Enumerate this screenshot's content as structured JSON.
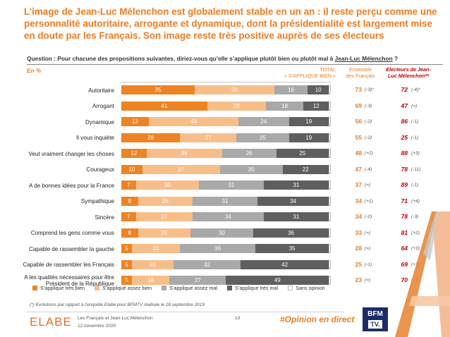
{
  "title": {
    "line1": "L’image de Jean-Luc Mélenchon est globalement stable en un an : il reste perçu comme une",
    "line2": "personnalité autoritaire, arrogante et dynamique, dont la présidentialité est largement mise",
    "line3": "en doute par les Français. Son image reste très positive auprès de ses électeurs"
  },
  "question": {
    "prefix": "Question : Pour chacune des propositions suivantes, diriez-vous qu’elle s’applique plutôt bien ou plutôt mal à",
    "subject": "Jean-Luc Mélenchon",
    "suffix": " ?"
  },
  "unit_label": "En  %",
  "columns": {
    "total_line1": "TOTAL",
    "total_line2": "« S’APPLIQUE BIEN »",
    "ensemble_line1": "Ensemble",
    "ensemble_line2": "des Français",
    "electeurs_line1": "Electeurs de Jean-",
    "electeurs_line2": "Luc Mélenchon**"
  },
  "colors": {
    "tres_bien": "#ee8324",
    "assez_bien": "#f8be8a",
    "assez_mal": "#a9a9a9",
    "tres_mal": "#5f5f5f",
    "sans_opinion": "#ffffff",
    "accent": "#ec7d23",
    "electeurs": "#c00000"
  },
  "chart_data": {
    "type": "bar",
    "orientation": "horizontal-stacked-100",
    "unit": "%",
    "categories": [
      "Autoritaire",
      "Arrogant",
      "Dynamique",
      "Il vous inquiète",
      "Veut vraiment changer les choses",
      "Courageux",
      "A de bonnes idées pour la France",
      "Sympathique",
      "Sincère",
      "Comprend les gens comme vous",
      "Capable de rassembler la gauche",
      "Capable de rassembler les Français",
      "A les qualités nécessaires pour être Président de la République"
    ],
    "series": [
      {
        "name": "S’applique très bien",
        "values": [
          35,
          41,
          13,
          28,
          12,
          10,
          7,
          8,
          7,
          8,
          5,
          5,
          5
        ]
      },
      {
        "name": "S’applique assez bien",
        "values": [
          38,
          28,
          43,
          27,
          36,
          37,
          30,
          26,
          27,
          25,
          23,
          20,
          18
        ]
      },
      {
        "name": "S’applique assez mal",
        "values": [
          16,
          18,
          24,
          25,
          26,
          30,
          31,
          31,
          34,
          30,
          36,
          32,
          27
        ]
      },
      {
        "name": "S’applique très mal",
        "values": [
          10,
          12,
          19,
          19,
          25,
          22,
          31,
          34,
          31,
          36,
          35,
          42,
          49
        ]
      },
      {
        "name": "Sans opinion",
        "values": [
          1,
          1,
          1,
          1,
          1,
          1,
          1,
          1,
          1,
          1,
          1,
          1,
          1
        ]
      }
    ],
    "total_applique_bien": {
      "ensemble": [
        73,
        69,
        56,
        55,
        48,
        47,
        37,
        34,
        34,
        33,
        28,
        25,
        23
      ],
      "ensemble_evolution": [
        "(-3)*",
        "(-3)",
        "(-2)",
        "(-2)",
        "(+2)",
        "(-4)",
        "(=)",
        "(+1)",
        "(-2)",
        "(=)",
        "(=)",
        "(-1)",
        "(=)"
      ],
      "electeurs_jlm": [
        72,
        47,
        86,
        25,
        88,
        78,
        89,
        71,
        78,
        81,
        64,
        69,
        70
      ],
      "electeurs_jlm_evolution": [
        "(-4)*",
        "(=)",
        "(-1)",
        "(-1)",
        "(+3)",
        "(-11)",
        "(-1)",
        "(+4)",
        "(-3)",
        "(+2)",
        "(+3)",
        "(+3)",
        "(+1)"
      ]
    },
    "legend_position": "bottom",
    "xlim": [
      0,
      100
    ]
  },
  "footnote": "(*) Evolutions par rapport à l’enquête Elabe pour BFMTV réalisée le 18 septembre  2019",
  "footer": {
    "logo": "ELABE",
    "study_title": "Les Français et Jean-Luc Mélenchon",
    "date": "12 novembre 2020",
    "page_number": "13",
    "hashtag": "#Opinion en direct",
    "partner_line1": "BFM",
    "partner_line2": "TV."
  }
}
